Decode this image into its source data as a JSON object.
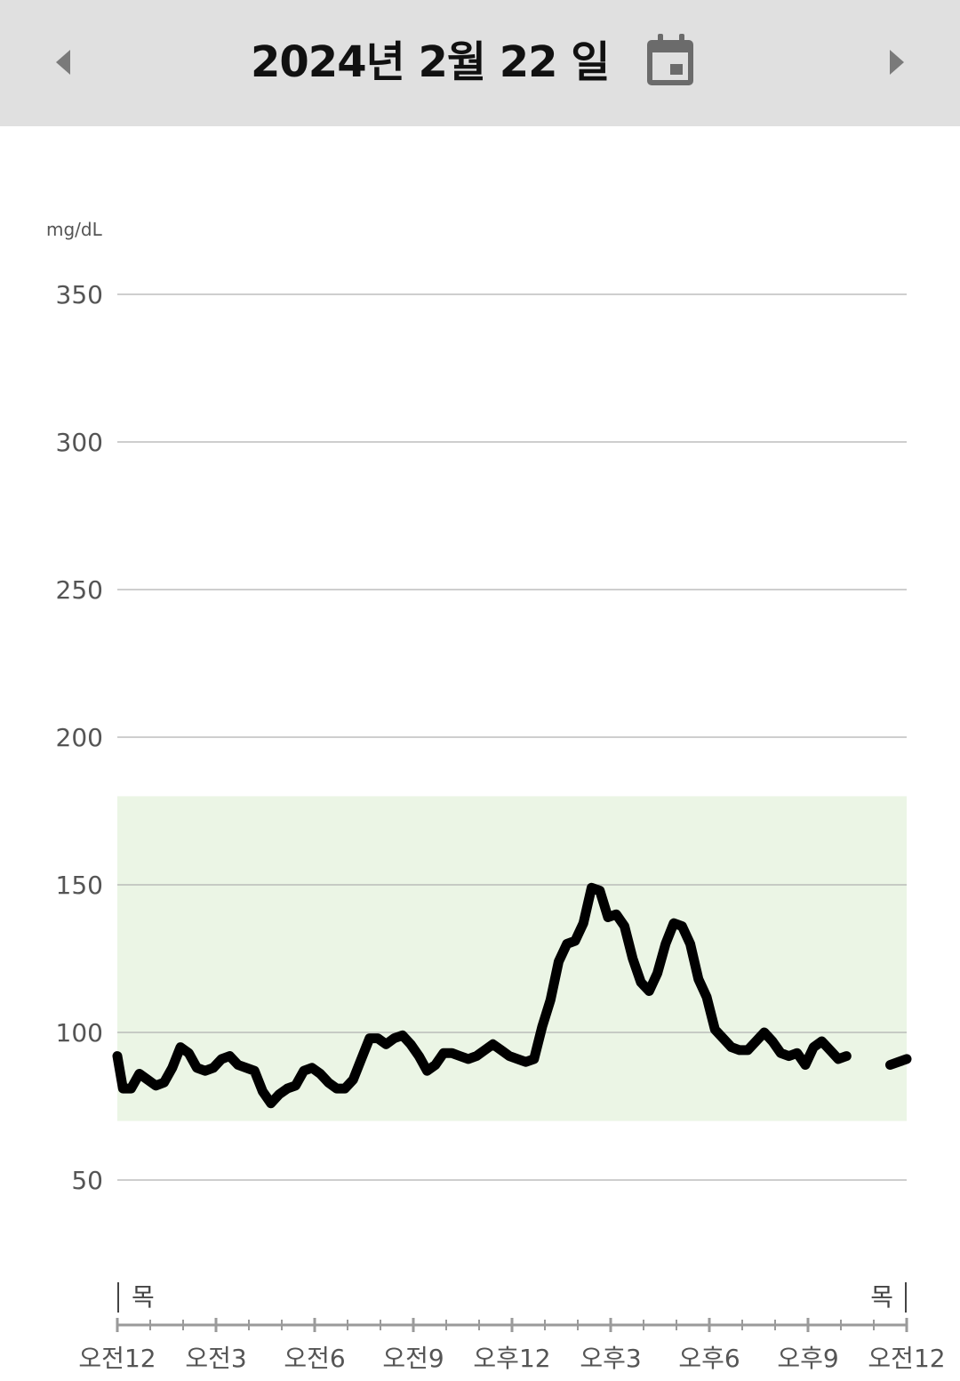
{
  "header": {
    "date_title": "2024년 2월 22 일",
    "prev_icon": "triangle-left-icon",
    "next_icon": "triangle-right-icon",
    "calendar_icon": "calendar-icon",
    "background": "#e0e0e0"
  },
  "chart_data": {
    "type": "line",
    "unit_label": "mg/dL",
    "y_ticks": [
      "350",
      "300",
      "250",
      "200",
      "150",
      "100",
      "50"
    ],
    "y_tick_values": [
      350,
      300,
      250,
      200,
      150,
      100,
      50
    ],
    "ylim": [
      15,
      365
    ],
    "xlim": [
      0,
      24
    ],
    "x_tick_labels": [
      "오전12",
      "오전3",
      "오전6",
      "오전9",
      "오후12",
      "오후3",
      "오후6",
      "오후9",
      "오전12"
    ],
    "x_tick_hours": [
      0,
      3,
      6,
      9,
      12,
      15,
      18,
      21,
      24
    ],
    "day_labels": [
      "목",
      "목"
    ],
    "target_range": {
      "low": 70,
      "high": 180,
      "color": "#ebf5e5"
    },
    "grid": true,
    "line_color": "#000000",
    "series": [
      {
        "segments": [
          [
            [
              0,
              92
            ],
            [
              0.17,
              81
            ],
            [
              0.42,
              81
            ],
            [
              0.67,
              86
            ],
            [
              0.92,
              84
            ],
            [
              1.17,
              82
            ],
            [
              1.42,
              83
            ],
            [
              1.67,
              88
            ],
            [
              1.92,
              95
            ],
            [
              2.17,
              93
            ],
            [
              2.42,
              88
            ],
            [
              2.67,
              87
            ],
            [
              2.92,
              88
            ],
            [
              3.17,
              91
            ],
            [
              3.42,
              92
            ],
            [
              3.67,
              89
            ],
            [
              3.92,
              88
            ],
            [
              4.17,
              87
            ],
            [
              4.42,
              80
            ],
            [
              4.67,
              76
            ],
            [
              4.92,
              79
            ],
            [
              5.17,
              81
            ],
            [
              5.42,
              82
            ],
            [
              5.67,
              87
            ],
            [
              5.92,
              88
            ],
            [
              6.17,
              86
            ],
            [
              6.42,
              83
            ],
            [
              6.67,
              81
            ],
            [
              6.92,
              81
            ],
            [
              7.17,
              84
            ],
            [
              7.42,
              91
            ],
            [
              7.67,
              98
            ],
            [
              7.92,
              98
            ],
            [
              8.17,
              96
            ],
            [
              8.42,
              98
            ],
            [
              8.67,
              99
            ],
            [
              8.92,
              96
            ],
            [
              9.17,
              92
            ],
            [
              9.42,
              87
            ],
            [
              9.67,
              89
            ],
            [
              9.92,
              93
            ],
            [
              10.17,
              93
            ],
            [
              10.42,
              92
            ],
            [
              10.67,
              91
            ],
            [
              10.92,
              92
            ],
            [
              11.17,
              94
            ],
            [
              11.42,
              96
            ],
            [
              11.67,
              94
            ],
            [
              11.92,
              92
            ],
            [
              12.17,
              91
            ],
            [
              12.42,
              90
            ],
            [
              12.67,
              91
            ],
            [
              12.92,
              102
            ],
            [
              13.17,
              111
            ],
            [
              13.42,
              124
            ],
            [
              13.67,
              130
            ],
            [
              13.92,
              131
            ],
            [
              14.17,
              137
            ],
            [
              14.42,
              149
            ],
            [
              14.67,
              148
            ],
            [
              14.92,
              139
            ],
            [
              15.17,
              140
            ],
            [
              15.42,
              136
            ],
            [
              15.67,
              125
            ],
            [
              15.92,
              117
            ],
            [
              16.17,
              114
            ],
            [
              16.42,
              120
            ],
            [
              16.67,
              130
            ],
            [
              16.92,
              137
            ],
            [
              17.17,
              136
            ],
            [
              17.42,
              130
            ],
            [
              17.67,
              118
            ],
            [
              17.92,
              112
            ],
            [
              18.17,
              101
            ],
            [
              18.42,
              98
            ],
            [
              18.67,
              95
            ],
            [
              18.92,
              94
            ],
            [
              19.17,
              94
            ],
            [
              19.42,
              97
            ],
            [
              19.67,
              100
            ],
            [
              19.92,
              97
            ],
            [
              20.17,
              93
            ],
            [
              20.42,
              92
            ],
            [
              20.67,
              93
            ],
            [
              20.92,
              89
            ],
            [
              21.17,
              95
            ],
            [
              21.42,
              97
            ],
            [
              21.67,
              94
            ],
            [
              21.92,
              91
            ],
            [
              22.17,
              92
            ]
          ],
          [
            [
              23.5,
              89
            ],
            [
              23.75,
              90
            ],
            [
              24,
              91
            ]
          ]
        ]
      }
    ]
  }
}
